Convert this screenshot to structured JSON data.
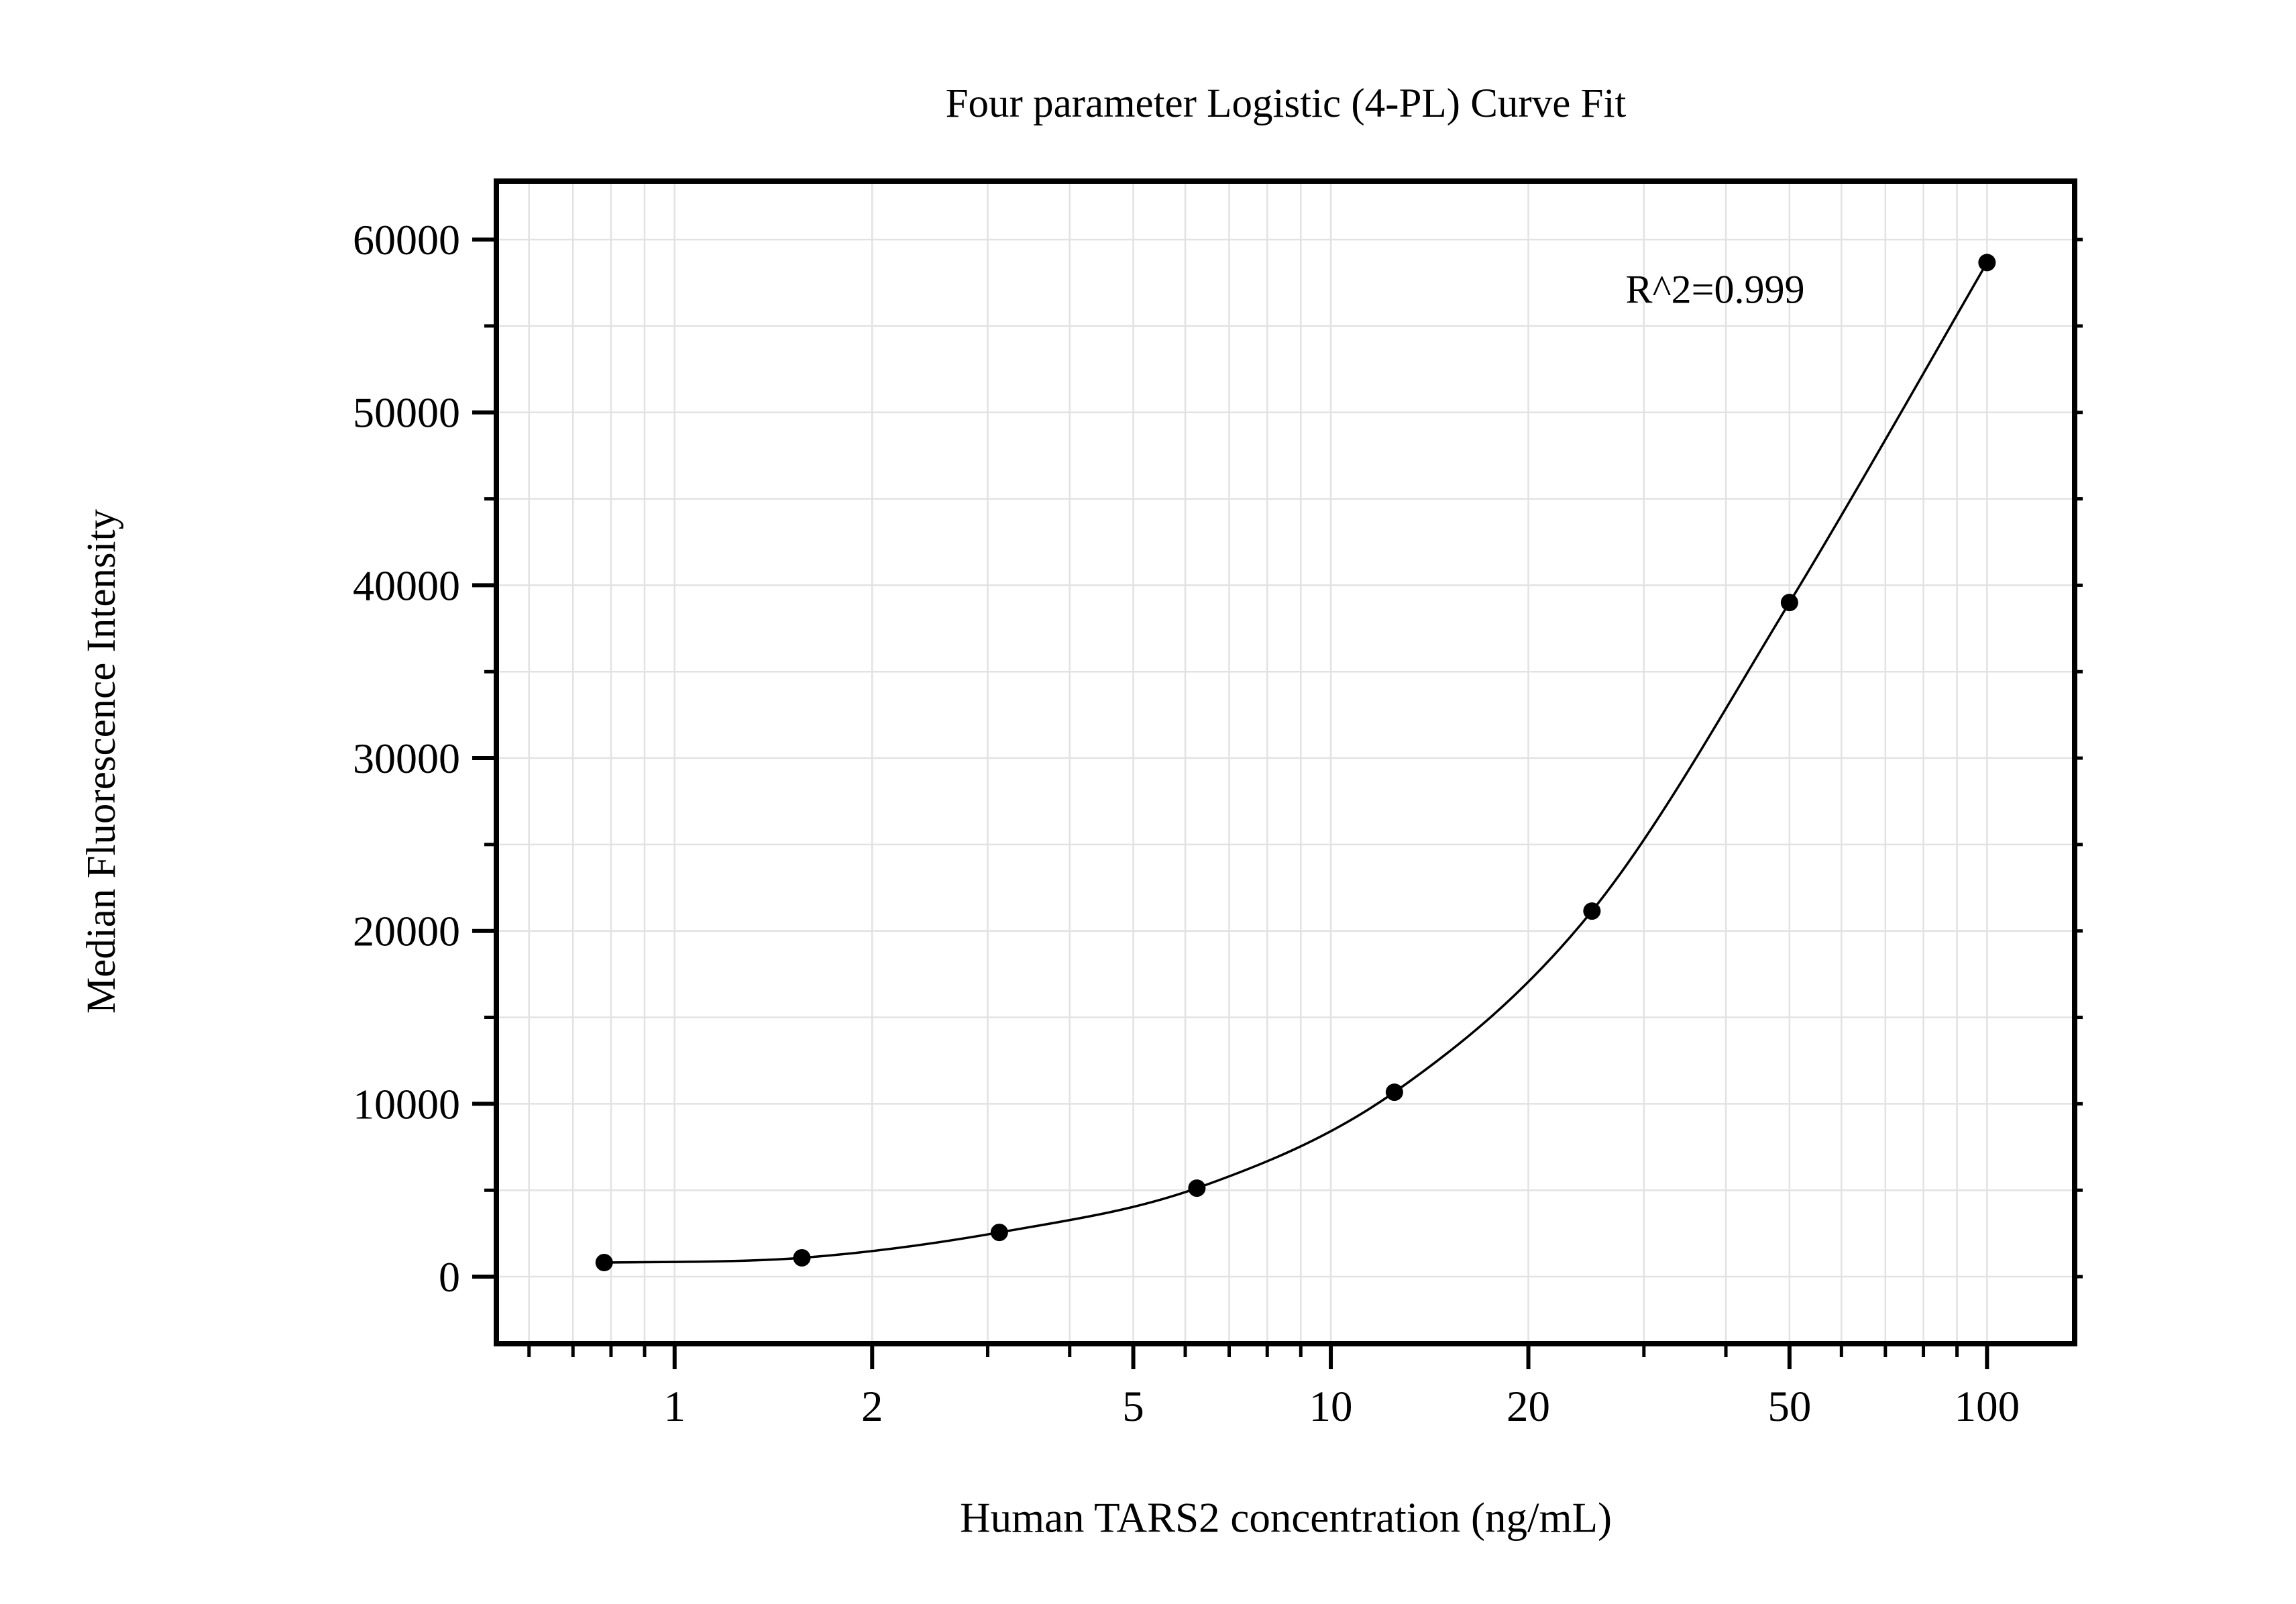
{
  "page": {
    "background": "#ffffff"
  },
  "chart_data": {
    "type": "scatter",
    "title": "Four parameter Logistic (4-PL) Curve Fit",
    "xlabel": "Human TARS2 concentration (ng/mL)",
    "ylabel": "Median Fluorescence Intensity",
    "annotation": "R^2=0.999",
    "x_scale": "log",
    "y_scale": "linear",
    "xlim": [
      0.535,
      136
    ],
    "ylim": [
      -3880,
      63380
    ],
    "x_ticks_labeled": [
      1,
      2,
      5,
      10,
      20,
      50,
      100
    ],
    "x_tick_labels": [
      "1",
      "2",
      "5",
      "10",
      "20",
      "50",
      "100"
    ],
    "x_ticks_minor": [
      0.6,
      0.7,
      0.8,
      0.9,
      3,
      4,
      6,
      7,
      8,
      9,
      30,
      40,
      60,
      70,
      80,
      90
    ],
    "y_ticks_labeled": [
      0,
      10000,
      20000,
      30000,
      40000,
      50000,
      60000
    ],
    "y_tick_labels": [
      "0",
      "10000",
      "20000",
      "30000",
      "40000",
      "50000",
      "60000"
    ],
    "y_tick_minor_step": 5000,
    "grid": true,
    "legend": "none",
    "series": [
      {
        "name": "4-PL fit",
        "marker": "circle",
        "line": "smooth",
        "color": "#000000",
        "x": [
          0.781,
          1.563,
          3.125,
          6.25,
          12.5,
          25,
          50,
          100
        ],
        "y": [
          815,
          1090,
          2560,
          5120,
          10670,
          21150,
          39000,
          58670
        ]
      }
    ],
    "colors": {
      "grid": "#e2e2e2",
      "axis": "#000000",
      "text": "#000000",
      "marker": "#000000",
      "curve": "#000000"
    }
  }
}
